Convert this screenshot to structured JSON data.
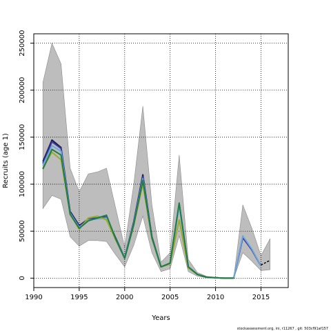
{
  "chart_data": {
    "type": "line",
    "xlabel": "Years",
    "ylabel": "Recruits (age 1)",
    "xlim": [
      1990,
      2018
    ],
    "ylim": [
      -10000,
      260000
    ],
    "xticks": [
      1990,
      1995,
      2000,
      2005,
      2010,
      2015
    ],
    "yticks": [
      0,
      50000,
      100000,
      150000,
      200000,
      250000
    ],
    "grid": true,
    "band": {
      "x": [
        1991,
        1992,
        1993,
        1994,
        1995,
        1996,
        1997,
        1998,
        1999,
        2000,
        2001,
        2002,
        2003,
        2004,
        2005,
        2006,
        2007,
        2008,
        2009,
        2010,
        2011,
        2012,
        2013,
        2014,
        2015,
        2016
      ],
      "upper": [
        208000,
        250000,
        228000,
        117000,
        92000,
        111000,
        113000,
        117000,
        75000,
        33000,
        100000,
        183000,
        78000,
        17000,
        27000,
        131000,
        20000,
        6000,
        2000,
        1000,
        0,
        0,
        78000,
        53000,
        24000,
        42000
      ],
      "lower": [
        74000,
        88000,
        84000,
        44000,
        34000,
        40000,
        40000,
        39000,
        25000,
        12000,
        35000,
        66000,
        27000,
        7000,
        10000,
        45000,
        7000,
        2000,
        500,
        200,
        0,
        0,
        27000,
        18000,
        8000,
        9000
      ]
    },
    "series": [
      {
        "color": "#1b1b4a",
        "x": [
          1991,
          1992,
          1993,
          1994,
          1995,
          1996,
          1997,
          1998,
          1999,
          2000,
          2001,
          2002,
          2003,
          2004,
          2005,
          2006,
          2007,
          2008,
          2009,
          2010,
          2011,
          2012,
          2013,
          2014,
          2015
        ],
        "values": [
          124000,
          147000,
          139000,
          71000,
          56000,
          63000,
          64000,
          65000,
          43000,
          22000,
          60000,
          110000,
          44000,
          12000,
          16000,
          79000,
          12000,
          4000,
          1000,
          500,
          0,
          0,
          44000,
          30000,
          13000
        ]
      },
      {
        "color": "#3a3aa0",
        "x": [
          1991,
          1992,
          1993,
          1994,
          1995,
          1996,
          1997,
          1998,
          1999,
          2000,
          2001,
          2002,
          2003,
          2004,
          2005,
          2006,
          2007,
          2008,
          2009,
          2010,
          2011,
          2012,
          2013,
          2014,
          2015
        ],
        "values": [
          122000,
          145000,
          138000,
          70000,
          55000,
          63000,
          64000,
          65000,
          42000,
          22000,
          59000,
          108000,
          43000,
          12000,
          16000,
          78000,
          12000,
          4000,
          1000,
          500,
          0,
          0,
          43000,
          30000,
          13000
        ]
      },
      {
        "color": "#6fa8dc",
        "x": [
          1991,
          1992,
          1993,
          1994,
          1995,
          1996,
          1997,
          1998,
          1999,
          2000,
          2001,
          2002,
          2003,
          2004,
          2005,
          2006,
          2007,
          2008,
          2009,
          2010,
          2011,
          2012,
          2013,
          2014,
          2015
        ],
        "values": [
          120000,
          141000,
          135000,
          69000,
          54000,
          62000,
          63000,
          64000,
          42000,
          22000,
          58000,
          106000,
          43000,
          12000,
          16000,
          77000,
          12000,
          4000,
          1000,
          500,
          0,
          0,
          45000,
          31000,
          13000
        ]
      },
      {
        "color": "#9aaa2a",
        "x": [
          1991,
          1992,
          1993,
          1994,
          1995,
          1996,
          1997,
          1998,
          1999,
          2000,
          2001,
          2002,
          2003,
          2004,
          2005,
          2006,
          2007,
          2008,
          2009,
          2010,
          2011,
          2012
        ],
        "values": [
          117000,
          134000,
          126000,
          68000,
          52000,
          64000,
          66000,
          62000,
          41000,
          21000,
          56000,
          100000,
          42000,
          12000,
          15000,
          62000,
          11000,
          4000,
          1000,
          500,
          0,
          0
        ]
      },
      {
        "color": "#1e7d46",
        "x": [
          1991,
          1992,
          1993,
          1994,
          1995,
          1996,
          1997,
          1998,
          1999,
          2000,
          2001,
          2002,
          2003,
          2004,
          2005,
          2006,
          2007,
          2008,
          2009,
          2010,
          2011,
          2012
        ],
        "values": [
          116000,
          137000,
          131000,
          68000,
          53000,
          61000,
          64000,
          67000,
          42000,
          21000,
          57000,
          104000,
          43000,
          12000,
          16000,
          80000,
          12000,
          4000,
          1000,
          500,
          0,
          0
        ]
      },
      {
        "color": "#000000",
        "dashed": true,
        "x": [
          2015,
          2016
        ],
        "values": [
          14000,
          19000
        ]
      }
    ]
  },
  "footer": "stockassessment.org, ini, r11267 , git: 503cf91af157"
}
